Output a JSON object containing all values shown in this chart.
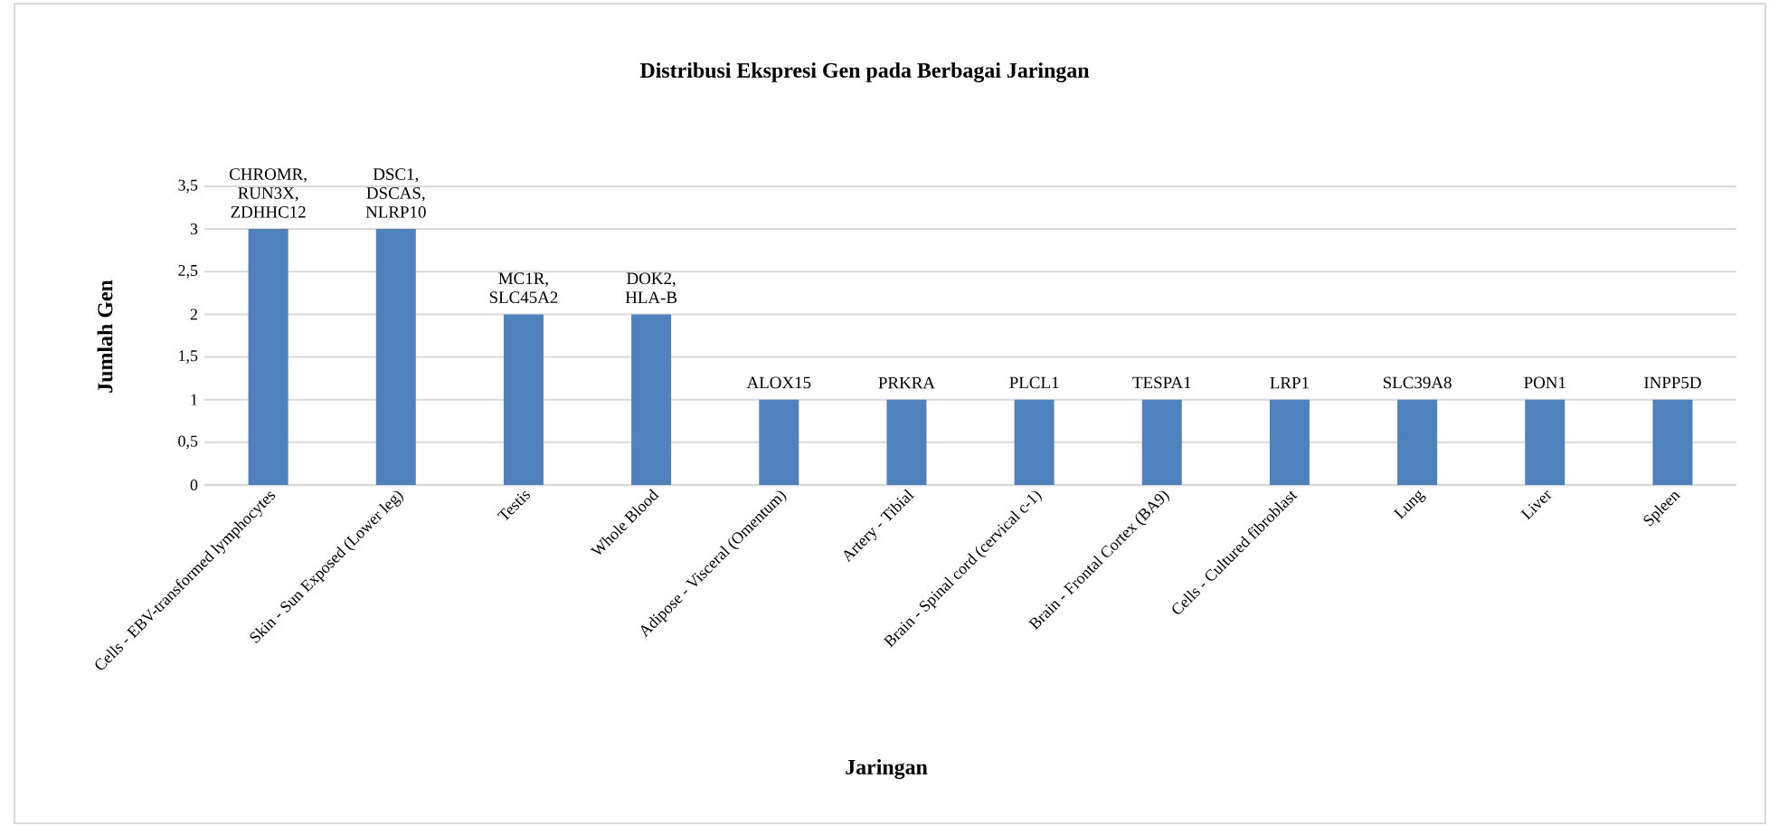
{
  "chart_data": {
    "type": "bar",
    "title": "Distribusi Ekspresi Gen pada Berbagai Jaringan",
    "xlabel": "Jaringan",
    "ylabel": "Jumlah Gen",
    "categories": [
      "Cells - EBV-transformed lymphocytes",
      "Skin - Sun Exposed (Lower leg)",
      "Testis",
      "Whole Blood",
      "Adipose - Visceral (Omentum)",
      "Artery - Tibial",
      "Brain - Spinal cord (cervical c-1)",
      "Brain - Frontal Cortex (BA9)",
      "Cells - Cultured fibroblast",
      "Lung",
      "Liver",
      "Spleen"
    ],
    "values": [
      3,
      3,
      2,
      2,
      1,
      1,
      1,
      1,
      1,
      1,
      1,
      1
    ],
    "value_labels": [
      "CHROMR, RUN3X, ZDHHC12",
      "DSC1, DSCAS, NLRP10",
      "MC1R, SLC45A2",
      "DOK2, HLA-B",
      "ALOX15",
      "PRKRA",
      "PLCL1",
      "TESPA1",
      "LRP1",
      "SLC39A8",
      "PON1",
      "INPP5D"
    ],
    "color": "#4f81bd",
    "ylim": [
      0,
      3.5
    ],
    "yticks": [
      0,
      {
        "value": 0.5,
        "label": "0,5"
      },
      1,
      {
        "value": 1.5,
        "label": "1,5"
      },
      2,
      {
        "value": 2.5,
        "label": "2,5"
      },
      3,
      {
        "value": 3.5,
        "label": "3,5"
      }
    ],
    "grid": "y"
  }
}
